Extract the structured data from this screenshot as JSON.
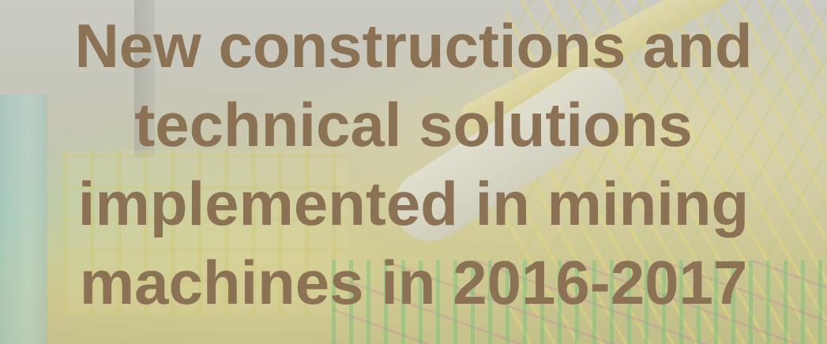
{
  "slide": {
    "title_lines": [
      "New constructions and",
      "technical solutions",
      "implemented in mining",
      "machines in 2016-2017"
    ],
    "title_color": "#8c7255",
    "background": "faded industrial mining machine 3D model"
  }
}
